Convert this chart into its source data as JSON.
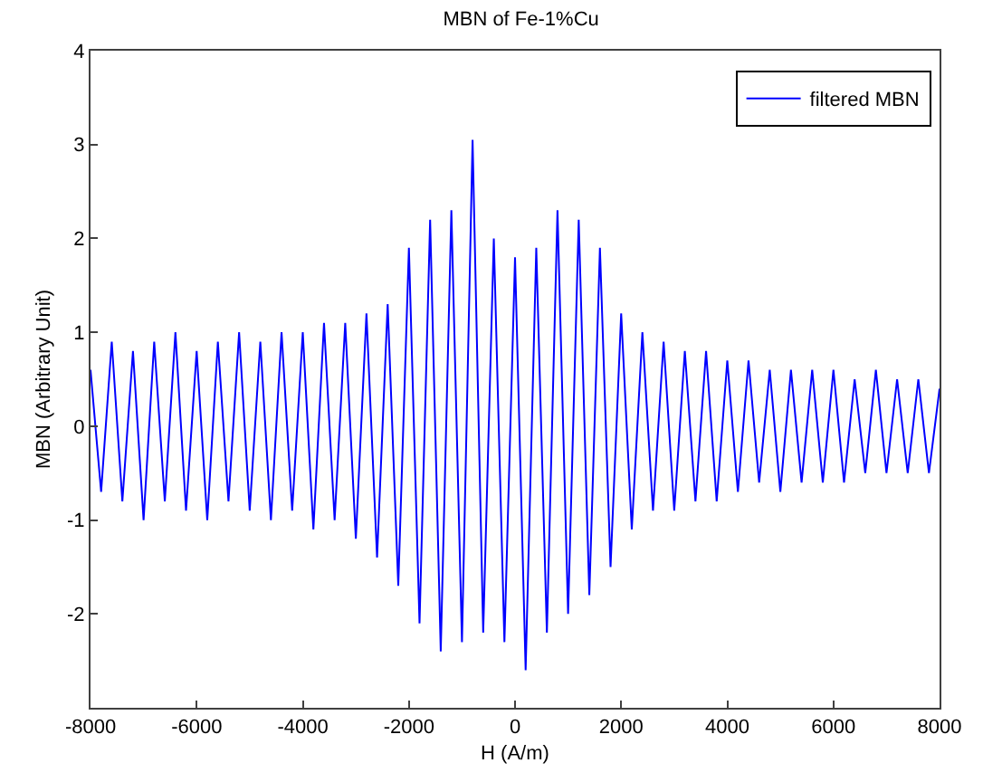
{
  "chart_data": {
    "type": "line",
    "title": "MBN of Fe-1%Cu",
    "xlabel": "H (A/m)",
    "ylabel": "MBN (Arbitrary Unit)",
    "xlim": [
      -8000,
      8000
    ],
    "xticks": [
      -8000,
      -6000,
      -4000,
      -2000,
      0,
      2000,
      4000,
      6000,
      8000
    ],
    "ylim": [
      -3,
      4
    ],
    "yticks": [
      {
        "value": -3,
        "label": null
      },
      -2,
      -1,
      0,
      1,
      2,
      3,
      4
    ],
    "grid": false,
    "legend": "top right",
    "marker": "none",
    "line_style": "solid",
    "series": [
      {
        "name": "filtered MBN",
        "color": "#0000ff",
        "x": [
          -8000,
          -7800,
          -7600,
          -7400,
          -7200,
          -7000,
          -6800,
          -6600,
          -6400,
          -6200,
          -6000,
          -5800,
          -5600,
          -5400,
          -5200,
          -5000,
          -4800,
          -4600,
          -4400,
          -4200,
          -4000,
          -3800,
          -3600,
          -3400,
          -3200,
          -3000,
          -2800,
          -2600,
          -2400,
          -2200,
          -2000,
          -1800,
          -1600,
          -1400,
          -1200,
          -1000,
          -800,
          -600,
          -400,
          -200,
          0,
          200,
          400,
          600,
          800,
          1000,
          1200,
          1400,
          1600,
          1800,
          2000,
          2200,
          2400,
          2600,
          2800,
          3000,
          3200,
          3400,
          3600,
          3800,
          4000,
          4200,
          4400,
          4600,
          4800,
          5000,
          5200,
          5400,
          5600,
          5800,
          6000,
          6200,
          6400,
          6600,
          6800,
          7000,
          7200,
          7400,
          7600,
          7800,
          8000
        ],
        "values": [
          0.6,
          -0.7,
          0.9,
          -0.8,
          0.8,
          -1.0,
          0.9,
          -0.8,
          1.0,
          -0.9,
          0.8,
          -1.0,
          0.9,
          -0.8,
          1.0,
          -0.9,
          0.9,
          -1.0,
          1.0,
          -0.9,
          1.0,
          -1.1,
          1.1,
          -1.0,
          1.1,
          -1.2,
          1.2,
          -1.4,
          1.3,
          -1.7,
          1.9,
          -2.1,
          2.2,
          -2.4,
          2.3,
          -2.3,
          3.05,
          -2.2,
          2.0,
          -2.3,
          1.8,
          -2.6,
          1.9,
          -2.2,
          2.3,
          -2.0,
          2.2,
          -1.8,
          1.9,
          -1.5,
          1.2,
          -1.1,
          1.0,
          -0.9,
          0.9,
          -0.9,
          0.8,
          -0.8,
          0.8,
          -0.8,
          0.7,
          -0.7,
          0.7,
          -0.6,
          0.6,
          -0.7,
          0.6,
          -0.6,
          0.6,
          -0.6,
          0.6,
          -0.6,
          0.5,
          -0.5,
          0.6,
          -0.5,
          0.5,
          -0.5,
          0.5,
          -0.5,
          0.4
        ]
      }
    ]
  }
}
